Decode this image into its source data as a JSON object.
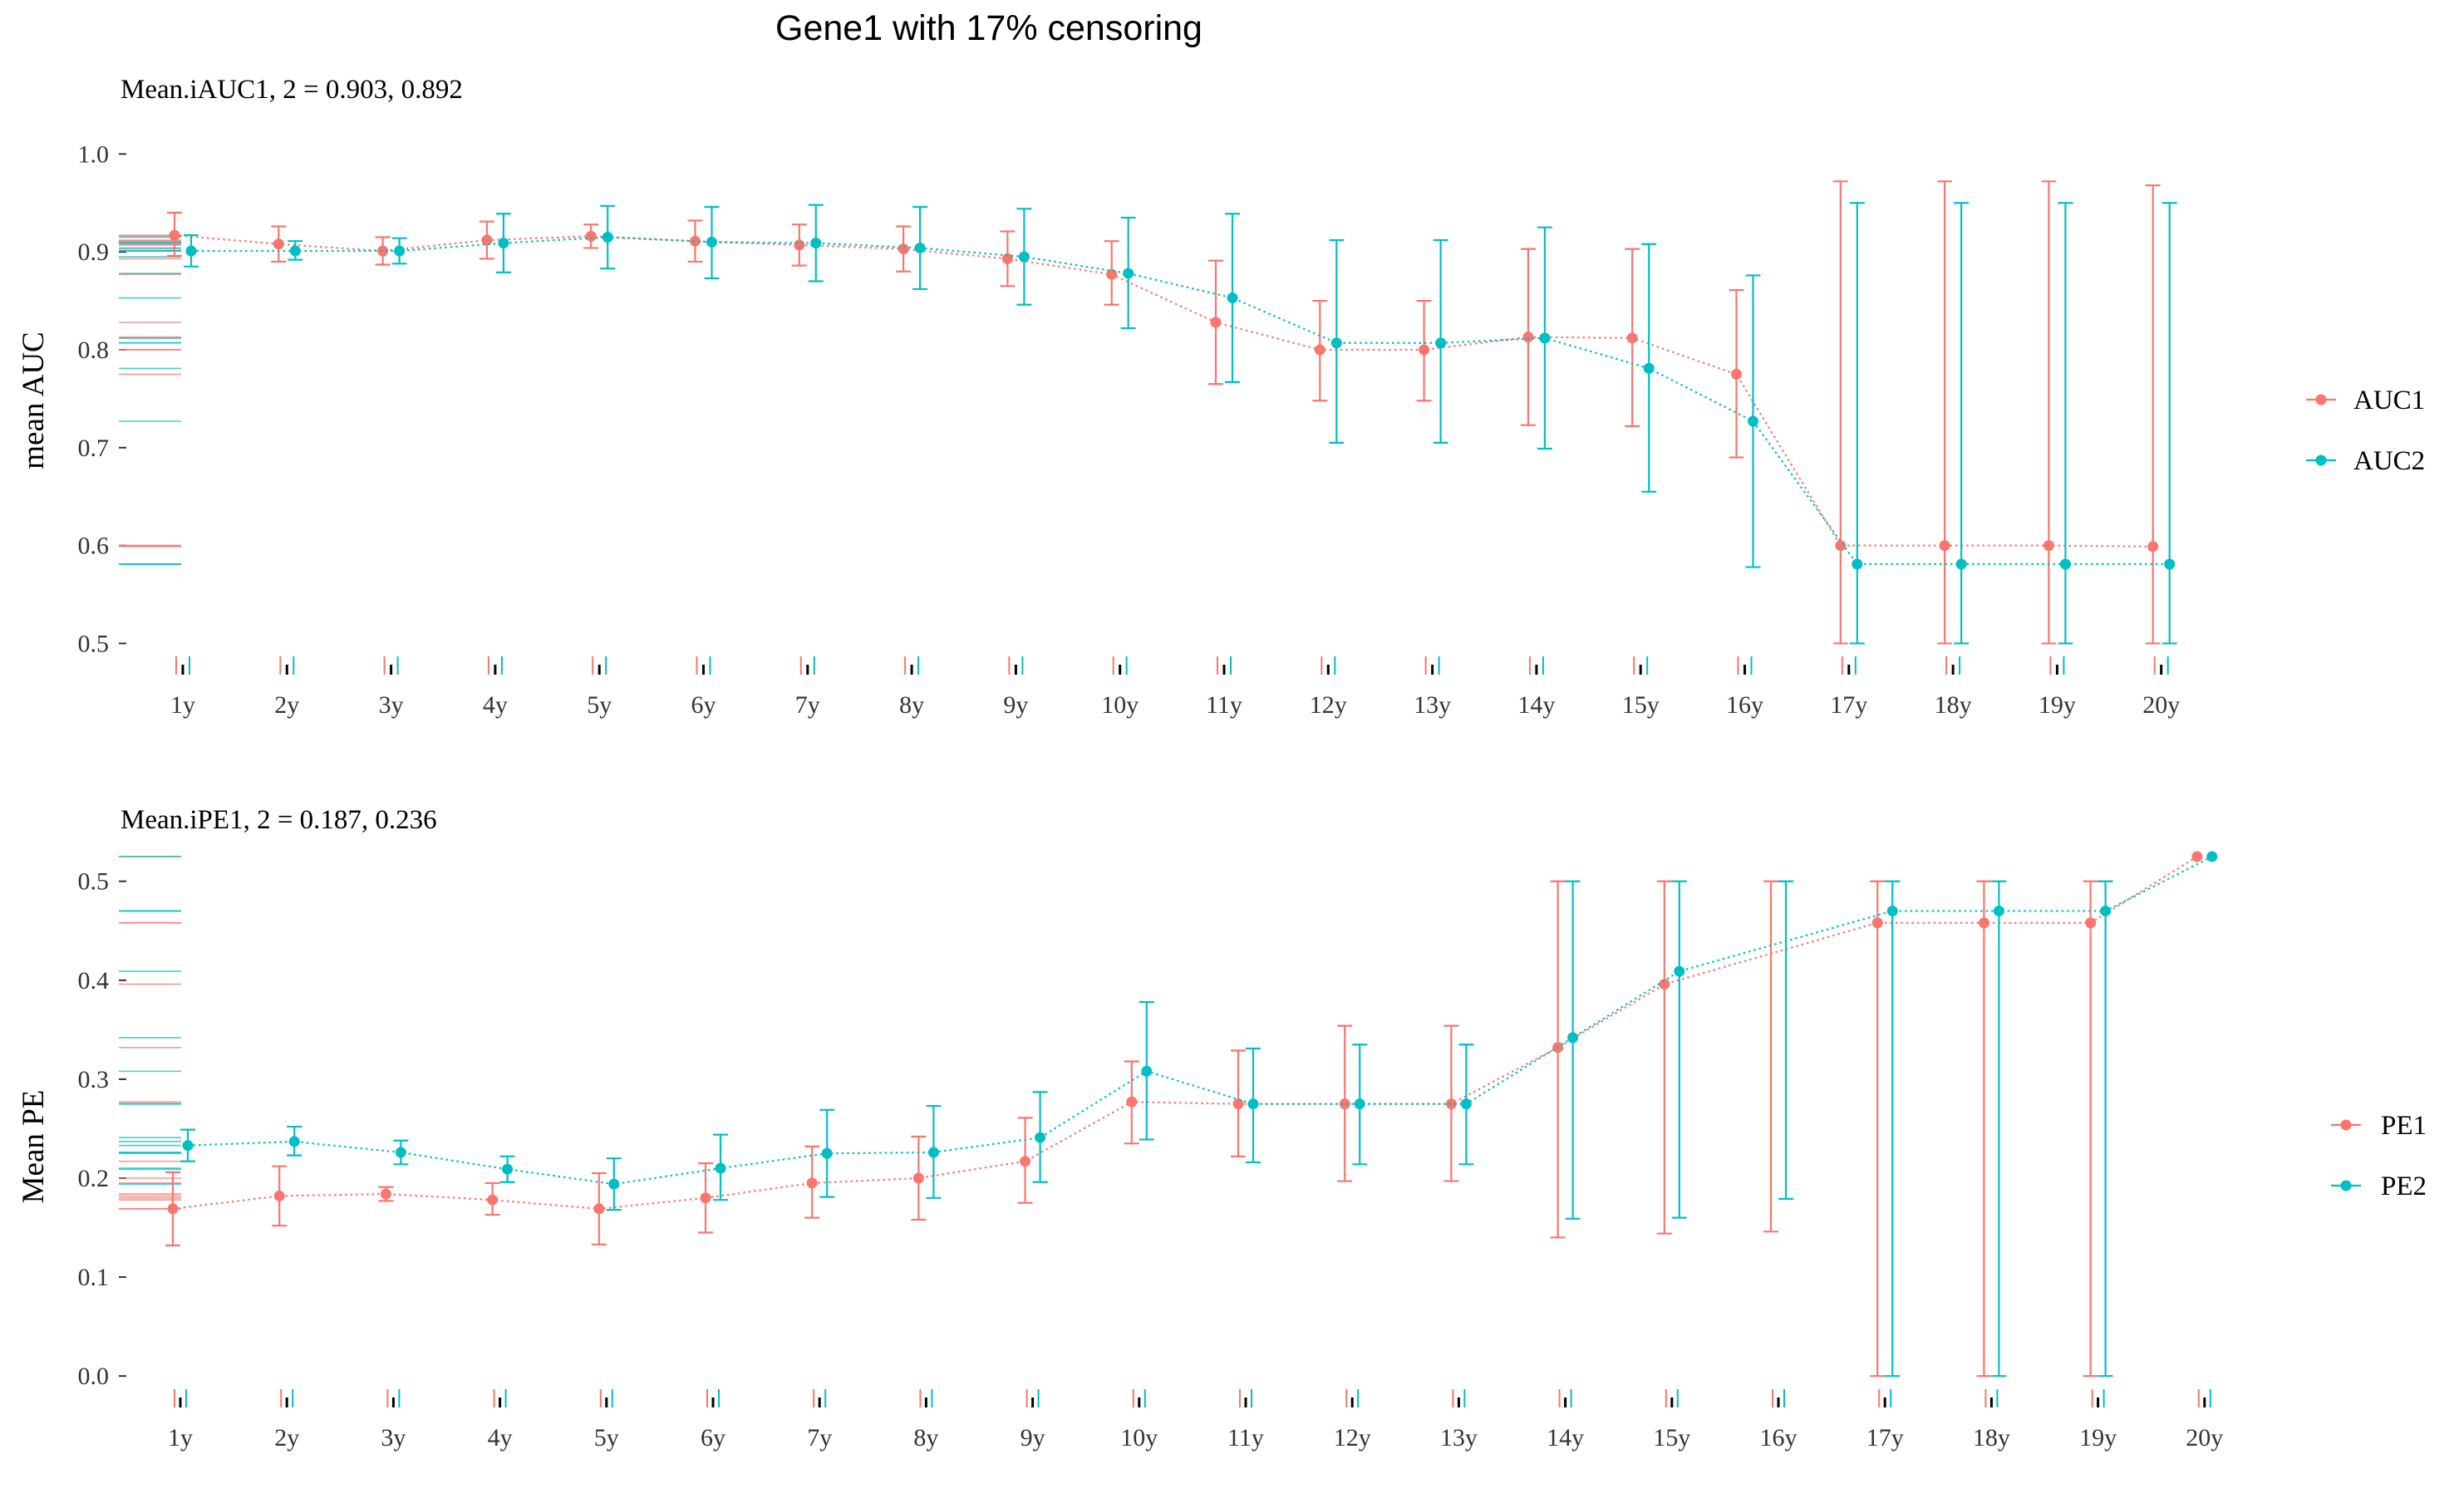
{
  "page_title": "Gene1 with 17% censoring",
  "colors": {
    "series1": "#F8766D",
    "series2": "#00BFC4",
    "tick": "#333333"
  },
  "chart_data": [
    {
      "type": "line",
      "subtitle": "Mean.iAUC1, 2 =  0.903, 0.892",
      "xlabel": "",
      "ylabel": "mean AUC",
      "categories": [
        "1y",
        "2y",
        "3y",
        "4y",
        "5y",
        "6y",
        "7y",
        "8y",
        "9y",
        "10y",
        "11y",
        "12y",
        "13y",
        "14y",
        "15y",
        "16y",
        "17y",
        "18y",
        "19y",
        "20y"
      ],
      "ylim": [
        0.48,
        1.03
      ],
      "yticks": [
        0.5,
        0.6,
        0.7,
        0.8,
        0.9,
        1.0
      ],
      "ytick_labels": [
        "0.5",
        "0.6",
        "0.7",
        "0.8",
        "0.9",
        "1.0"
      ],
      "grid": false,
      "legend_position": "right",
      "series": [
        {
          "name": "AUC1",
          "values": [
            0.917,
            0.908,
            0.901,
            0.912,
            0.916,
            0.911,
            0.907,
            0.903,
            0.893,
            0.877,
            0.828,
            0.8,
            0.8,
            0.813,
            0.812,
            0.775,
            0.6,
            0.6,
            0.6,
            0.599
          ],
          "lower": [
            0.896,
            0.89,
            0.887,
            0.893,
            0.904,
            0.89,
            0.886,
            0.88,
            0.865,
            0.846,
            0.765,
            0.748,
            0.748,
            0.723,
            0.722,
            0.69,
            0.5,
            0.5,
            0.5,
            0.5
          ],
          "upper": [
            0.94,
            0.926,
            0.915,
            0.931,
            0.928,
            0.932,
            0.928,
            0.926,
            0.921,
            0.911,
            0.891,
            0.85,
            0.85,
            0.903,
            0.903,
            0.861,
            0.972,
            0.972,
            0.972,
            0.968
          ]
        },
        {
          "name": "AUC2",
          "values": [
            0.901,
            0.901,
            0.901,
            0.909,
            0.915,
            0.91,
            0.909,
            0.904,
            0.895,
            0.878,
            0.853,
            0.807,
            0.807,
            0.812,
            0.781,
            0.727,
            0.581,
            0.581,
            0.581,
            0.581
          ],
          "lower": [
            0.885,
            0.892,
            0.888,
            0.879,
            0.883,
            0.873,
            0.87,
            0.862,
            0.846,
            0.822,
            0.767,
            0.705,
            0.705,
            0.699,
            0.655,
            0.578,
            0.5,
            0.5,
            0.5,
            0.5
          ],
          "upper": [
            0.917,
            0.911,
            0.914,
            0.939,
            0.947,
            0.946,
            0.948,
            0.946,
            0.944,
            0.935,
            0.939,
            0.912,
            0.912,
            0.925,
            0.908,
            0.876,
            0.95,
            0.95,
            0.95,
            0.95
          ]
        }
      ]
    },
    {
      "type": "line",
      "subtitle": "Mean.iPE1, 2 =  0.187, 0.236",
      "xlabel": "",
      "ylabel": "Mean PE",
      "categories": [
        "1y",
        "2y",
        "3y",
        "4y",
        "5y",
        "6y",
        "7y",
        "8y",
        "9y",
        "10y",
        "11y",
        "12y",
        "13y",
        "14y",
        "15y",
        "16y",
        "17y",
        "18y",
        "19y",
        "20y"
      ],
      "ylim": [
        -0.02,
        0.53
      ],
      "yticks": [
        0.0,
        0.1,
        0.2,
        0.3,
        0.4,
        0.5
      ],
      "ytick_labels": [
        "0.0",
        "0.1",
        "0.2",
        "0.3",
        "0.4",
        "0.5"
      ],
      "grid": false,
      "legend_position": "right",
      "series": [
        {
          "name": "PE1",
          "values": [
            0.169,
            0.182,
            0.184,
            0.178,
            0.169,
            0.18,
            0.195,
            0.2,
            0.217,
            0.277,
            0.275,
            0.275,
            0.275,
            0.332,
            0.396,
            null,
            0.458,
            0.458,
            0.458,
            0.525
          ],
          "lower": [
            0.132,
            0.152,
            0.177,
            0.163,
            0.133,
            0.145,
            0.16,
            0.158,
            0.175,
            0.235,
            0.222,
            0.197,
            0.197,
            0.14,
            0.144,
            0.146,
            0.0,
            0.0,
            0.0,
            null
          ],
          "upper": [
            0.206,
            0.212,
            0.191,
            0.195,
            0.205,
            0.215,
            0.232,
            0.242,
            0.261,
            0.318,
            0.329,
            0.354,
            0.354,
            0.5,
            0.5,
            0.5,
            0.5,
            0.5,
            0.5,
            null
          ]
        },
        {
          "name": "PE2",
          "values": [
            0.233,
            0.237,
            0.226,
            0.209,
            0.194,
            0.21,
            0.225,
            0.226,
            0.241,
            0.308,
            0.275,
            0.275,
            0.275,
            0.342,
            0.409,
            null,
            0.47,
            0.47,
            0.47,
            0.525
          ],
          "lower": [
            0.217,
            0.223,
            0.214,
            0.196,
            0.168,
            0.178,
            0.181,
            0.18,
            0.196,
            0.239,
            0.216,
            0.214,
            0.214,
            0.159,
            0.16,
            0.179,
            0.0,
            0.0,
            0.0,
            null
          ],
          "upper": [
            0.249,
            0.252,
            0.238,
            0.222,
            0.22,
            0.244,
            0.269,
            0.273,
            0.287,
            0.378,
            0.331,
            0.335,
            0.335,
            0.5,
            0.5,
            0.5,
            0.5,
            0.5,
            0.5,
            null
          ]
        }
      ]
    }
  ]
}
